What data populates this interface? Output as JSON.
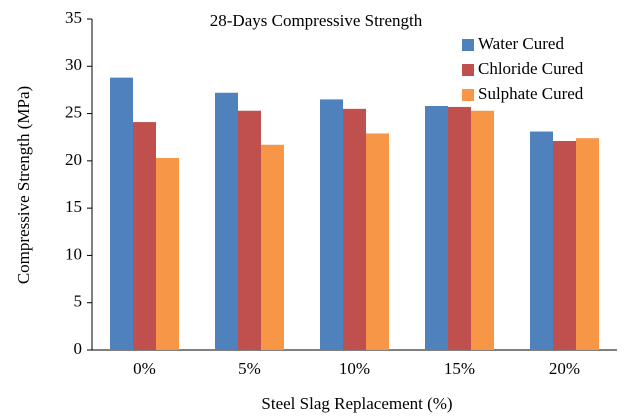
{
  "chart_data": {
    "type": "bar",
    "title": "28-Days Compressive Strength",
    "x_label": "Steel Slag Replacement (%)",
    "y_label": "Compressive Strength (MPa)",
    "categories": [
      "0%",
      "5%",
      "10%",
      "15%",
      "20%"
    ],
    "series": [
      {
        "name": "Water Cured",
        "color": "#4f81bd",
        "values": [
          28.8,
          27.2,
          26.5,
          25.8,
          23.1
        ]
      },
      {
        "name": "Chloride Cured",
        "color": "#c0504d",
        "values": [
          24.1,
          25.3,
          25.5,
          25.7,
          22.1
        ]
      },
      {
        "name": "Sulphate Cured",
        "color": "#f79646",
        "values": [
          20.3,
          21.7,
          22.9,
          25.3,
          22.4
        ]
      }
    ],
    "ylim": [
      0,
      35
    ],
    "yticks": [
      0,
      5,
      10,
      15,
      20,
      25,
      30,
      35
    ],
    "grid": false,
    "legend": "upper right"
  }
}
